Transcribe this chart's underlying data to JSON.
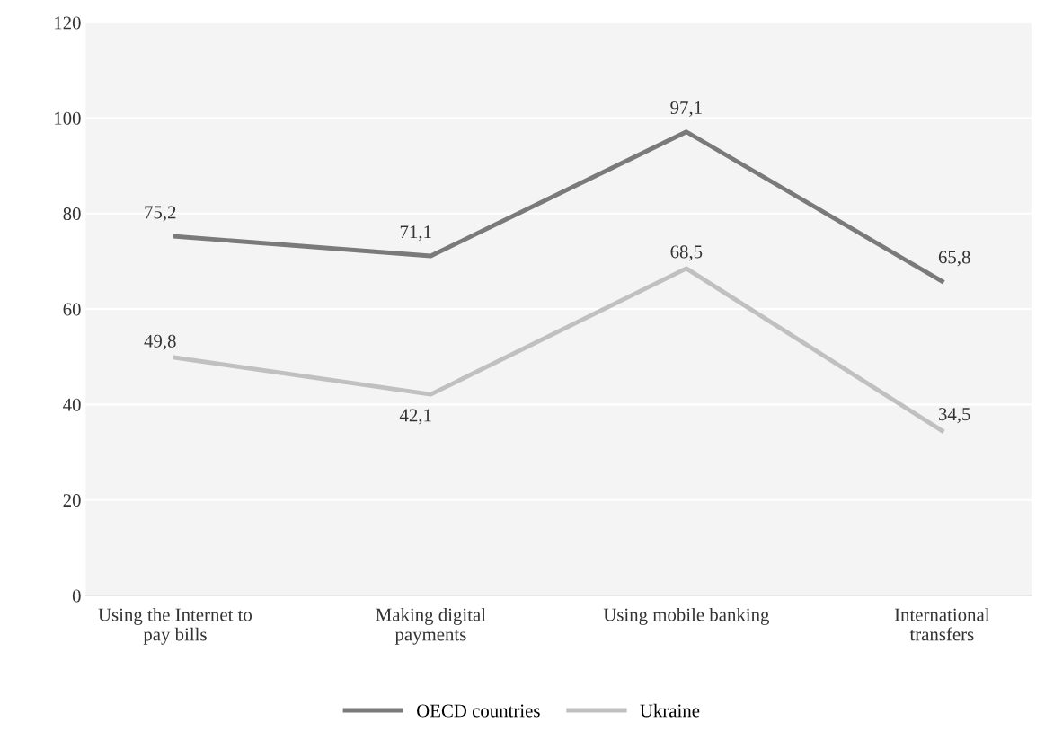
{
  "chart_data": {
    "type": "line",
    "categories": [
      "Using the Internet to pay bills",
      "Making digital payments",
      "Using mobile banking",
      "International transfers"
    ],
    "series": [
      {
        "name": "OECD countries",
        "color": "#7a7a7a",
        "values": [
          75.2,
          71.1,
          97.1,
          65.8
        ],
        "value_labels": [
          "75,2",
          "71,1",
          "97,1",
          "65,8"
        ]
      },
      {
        "name": "Ukraine",
        "color": "#c0c0c0",
        "values": [
          49.8,
          42.1,
          68.5,
          34.5
        ],
        "value_labels": [
          "49,8",
          "42,1",
          "68,5",
          "34,5"
        ]
      }
    ],
    "ylim": [
      0,
      120
    ],
    "yticks": [
      0,
      20,
      40,
      60,
      80,
      100,
      120
    ],
    "grid": "y",
    "legend": "bottom",
    "marker": "none",
    "line_style": "solid"
  }
}
